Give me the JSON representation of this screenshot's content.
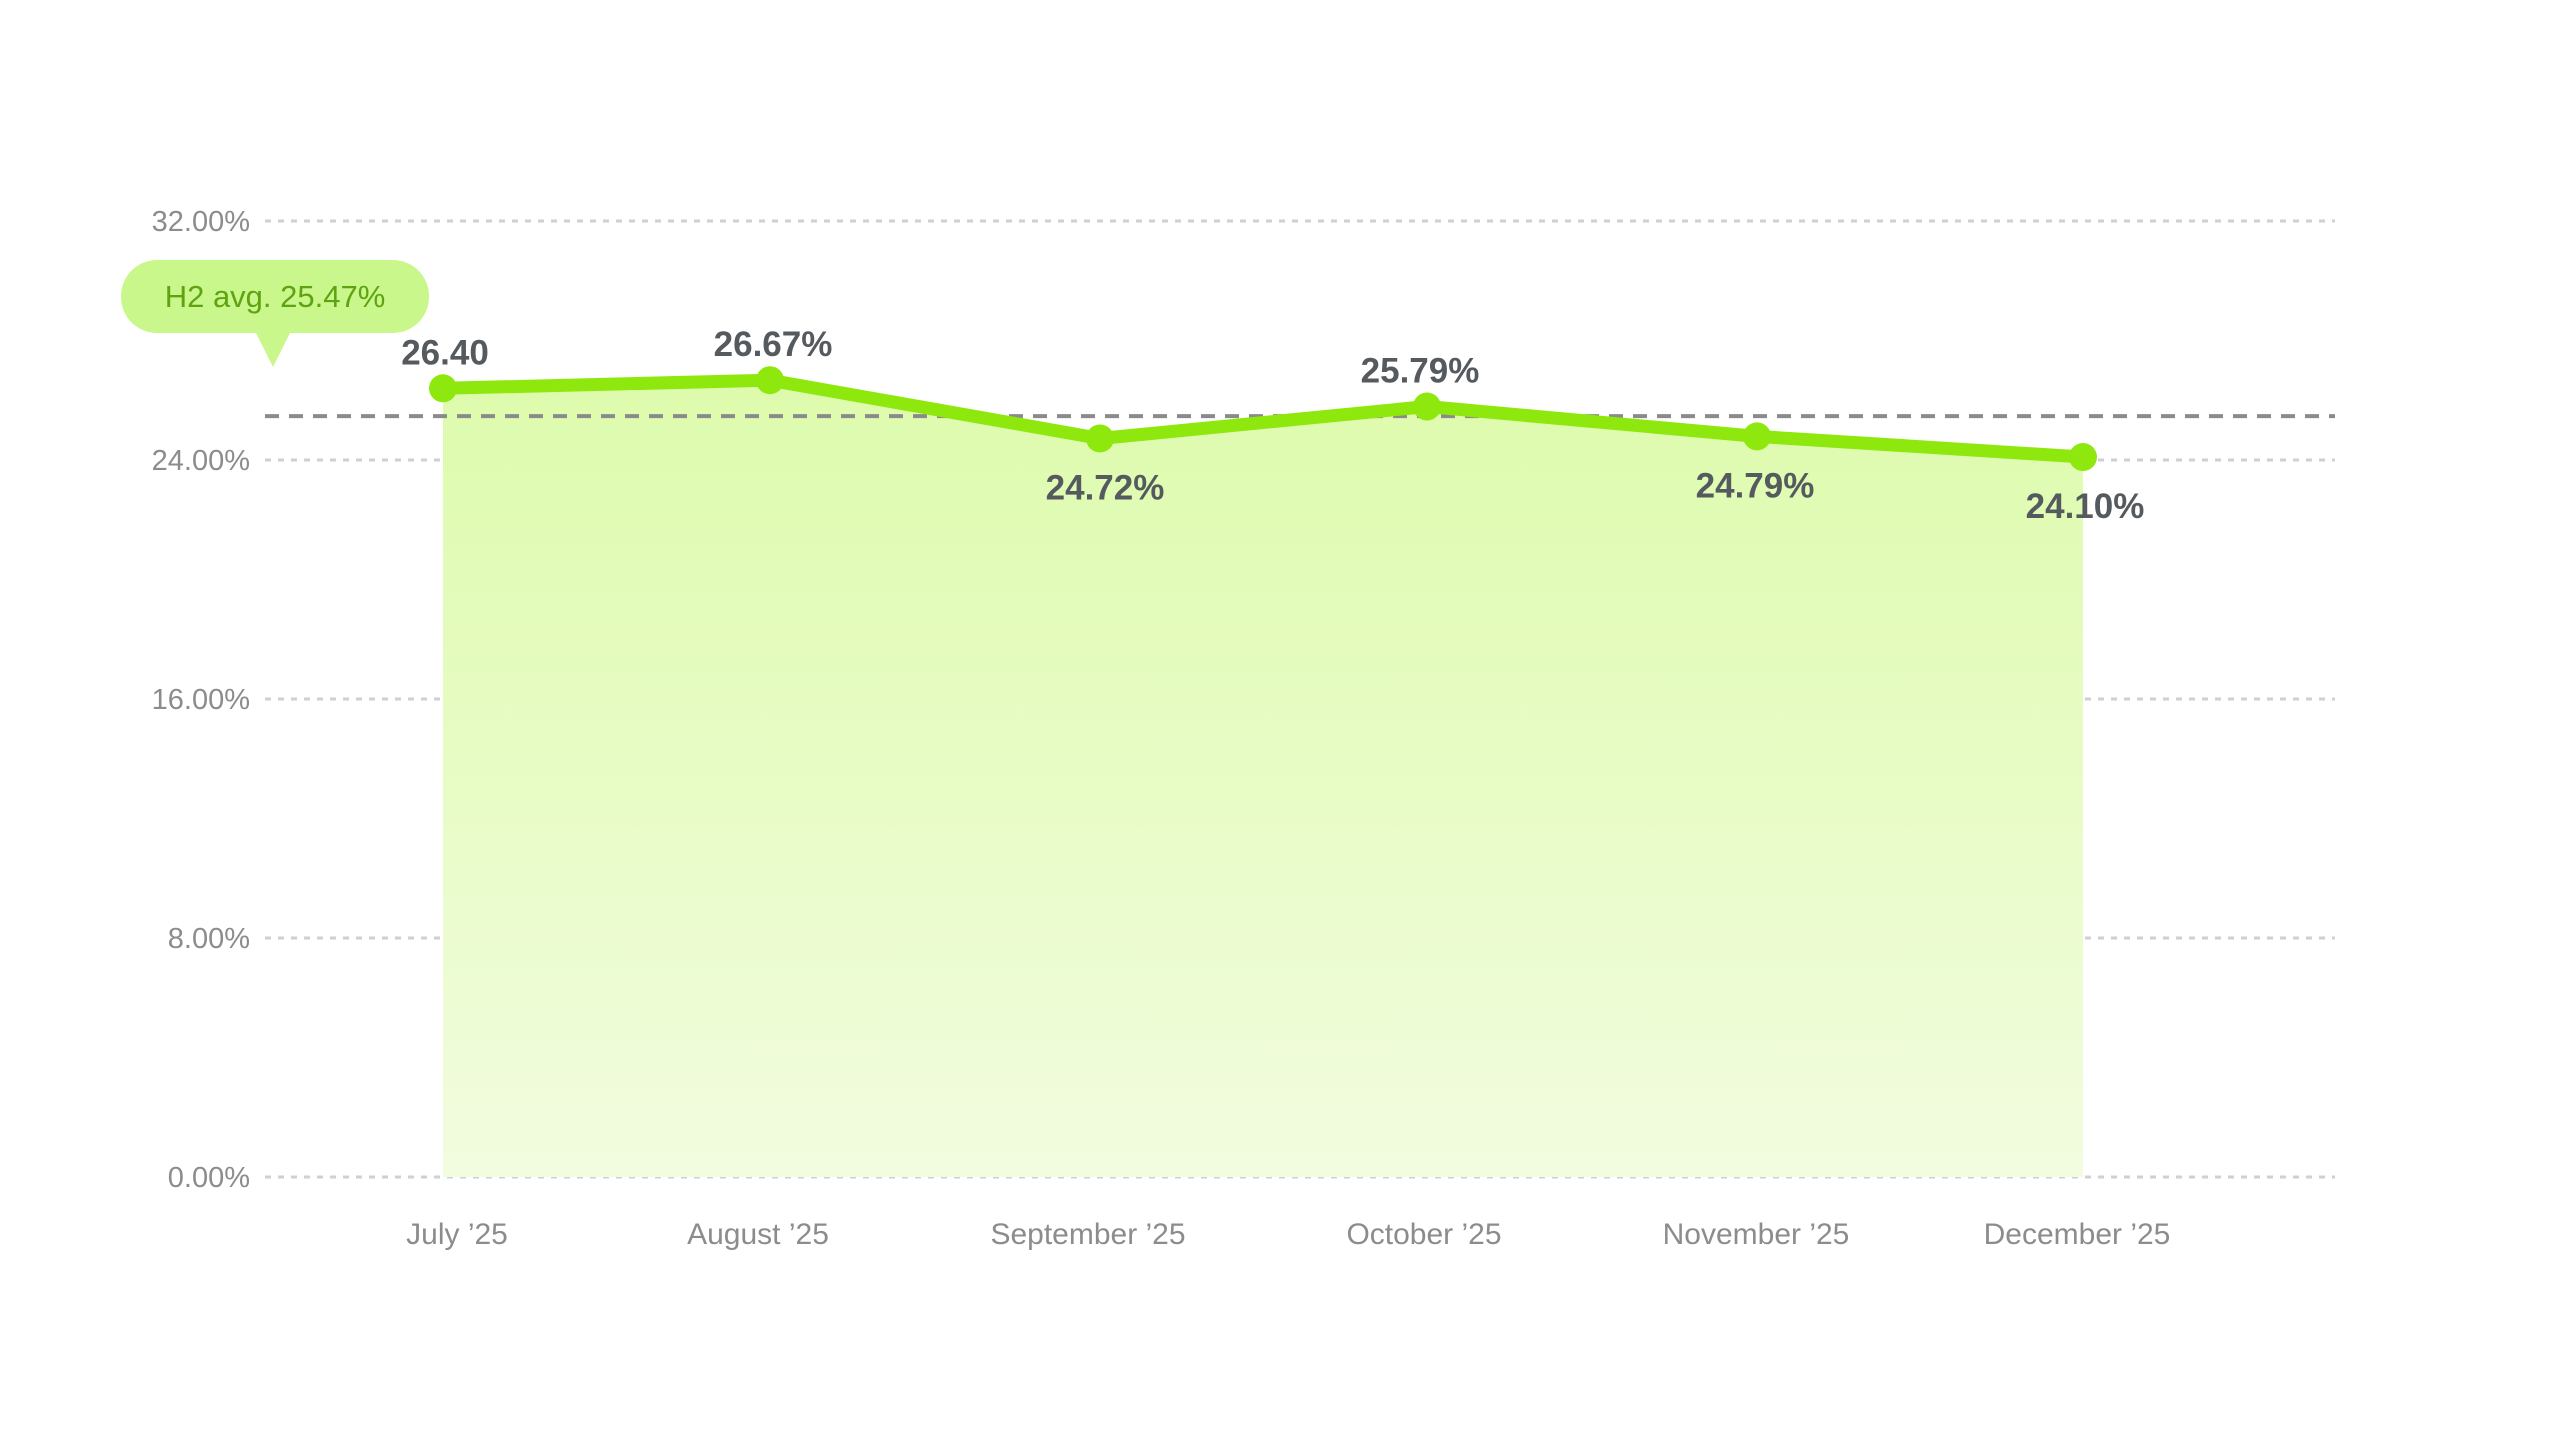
{
  "chart_data": {
    "type": "area",
    "categories": [
      "July ’25",
      "August ’25",
      "September ’25",
      "October ’25",
      "November ’25",
      "December ’25"
    ],
    "series": [
      {
        "values": [
          26.4,
          26.67,
          24.72,
          25.79,
          24.79,
          24.1
        ]
      }
    ],
    "data_labels": [
      "26.40",
      "26.67%",
      "24.72%",
      "25.79%",
      "24.79%",
      "24.10%"
    ],
    "yticks": [
      "0.00%",
      "8.00%",
      "16.00%",
      "24.00%",
      "32.00%"
    ],
    "ylim": [
      0,
      32
    ],
    "grid": true,
    "average": {
      "value": 25.47,
      "label": "H2 avg. 25.47%"
    },
    "colors": {
      "line": "#8ee80e",
      "fill_top": "#ddfbac",
      "fill_bottom": "#f2fcdf",
      "avg_badge": "#c9f78b",
      "avg_line": "#8a8a8a",
      "grid": "#cfcfd6"
    }
  }
}
